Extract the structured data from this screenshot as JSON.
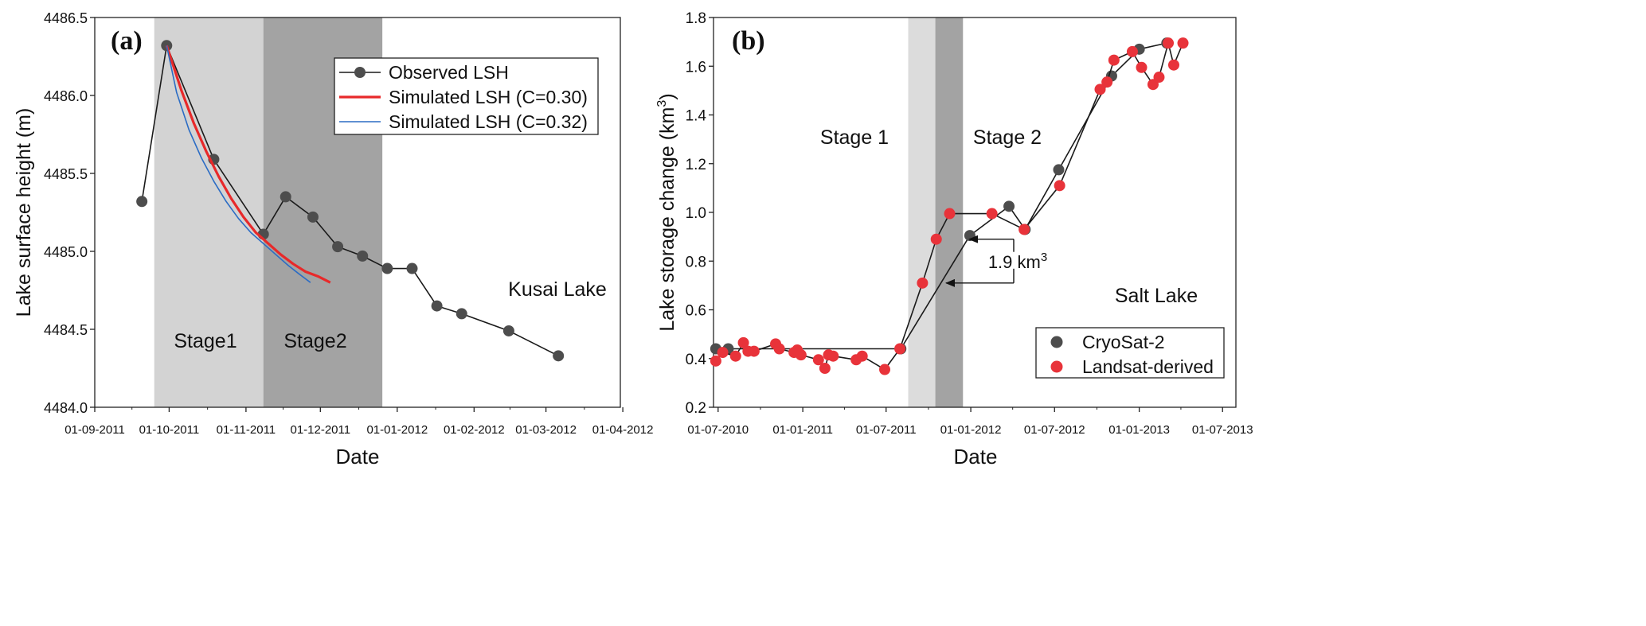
{
  "chart_data": [
    {
      "id": "a",
      "type": "line",
      "panel_label": "(a)",
      "xlabel": "Date",
      "ylabel": "Lake surface height (m)",
      "x_unit": "days since 01-09-2011",
      "xlim": [
        0,
        212
      ],
      "ylim": [
        4484.0,
        4486.5
      ],
      "x_ticks": [
        {
          "x": 0,
          "label": "01-09-2011"
        },
        {
          "x": 30,
          "label": "01-10-2011"
        },
        {
          "x": 61,
          "label": "01-11-2011"
        },
        {
          "x": 91,
          "label": "01-12-2011"
        },
        {
          "x": 122,
          "label": "01-01-2012"
        },
        {
          "x": 153,
          "label": "01-02-2012"
        },
        {
          "x": 182,
          "label": "01-03-2012"
        },
        {
          "x": 213,
          "label": "01-04-2012"
        }
      ],
      "y_ticks": [
        4484.0,
        4484.5,
        4485.0,
        4485.5,
        4486.0,
        4486.5
      ],
      "y_tick_labels": [
        "4484.0",
        "4484.5",
        "4485.0",
        "4485.5",
        "4486.0",
        "4486.5"
      ],
      "bands": [
        {
          "x0": 24,
          "x1": 68,
          "shade": "#d3d3d3",
          "label": "Stage1"
        },
        {
          "x0": 68,
          "x1": 116,
          "shade": "#a3a3a3",
          "label": "Stage2"
        }
      ],
      "series": [
        {
          "name": "Observed LSH",
          "kind": "line-marker",
          "color": "#4d4d4d",
          "x": [
            19,
            29,
            48,
            68,
            77,
            88,
            98,
            108,
            118,
            128,
            138,
            148,
            167,
            187
          ],
          "y": [
            4485.32,
            4486.32,
            4485.59,
            4485.11,
            4485.35,
            4485.22,
            4485.03,
            4484.97,
            4484.89,
            4484.89,
            4484.65,
            4484.6,
            4484.49,
            4484.33
          ]
        },
        {
          "name": "Simulated LSH (C=0.30)",
          "kind": "line",
          "color": "#e8292a",
          "x": [
            29,
            35,
            40,
            45,
            50,
            55,
            60,
            65,
            70,
            75,
            80,
            85,
            90,
            95
          ],
          "y": [
            4486.32,
            4486.03,
            4485.82,
            4485.64,
            4485.48,
            4485.34,
            4485.22,
            4485.12,
            4485.05,
            4484.98,
            4484.92,
            4484.87,
            4484.84,
            4484.8
          ]
        },
        {
          "name": "Simulated LSH (C=0.32)",
          "kind": "line",
          "color": "#2b6cc4",
          "x": [
            29,
            33,
            38,
            43,
            48,
            53,
            58,
            63,
            68,
            73,
            78,
            82,
            87
          ],
          "y": [
            4486.32,
            4486.02,
            4485.78,
            4485.6,
            4485.45,
            4485.32,
            4485.21,
            4485.12,
            4485.05,
            4484.98,
            4484.91,
            4484.86,
            4484.8
          ]
        }
      ],
      "legend": {
        "position": "top-right"
      },
      "annotations": [
        {
          "text": "Kusai Lake"
        }
      ]
    },
    {
      "id": "b",
      "type": "line",
      "panel_label": "(b)",
      "xlabel": "Date",
      "ylabel_main": "Lake storage change (km",
      "ylabel_sup": "3",
      "ylabel_end": ")",
      "x_unit": "days since 01-07-2010",
      "xlim": [
        -10,
        1125
      ],
      "ylim": [
        0.2,
        1.8
      ],
      "x_ticks": [
        {
          "x": 0,
          "label": "01-07-2010"
        },
        {
          "x": 184,
          "label": "01-01-2011"
        },
        {
          "x": 365,
          "label": "01-07-2011"
        },
        {
          "x": 549,
          "label": "01-01-2012"
        },
        {
          "x": 731,
          "label": "01-07-2012"
        },
        {
          "x": 915,
          "label": "01-01-2013"
        },
        {
          "x": 1096,
          "label": "01-07-2013"
        }
      ],
      "y_ticks": [
        0.2,
        0.4,
        0.6,
        0.8,
        1.0,
        1.2,
        1.4,
        1.6,
        1.8
      ],
      "y_tick_labels": [
        "0.2",
        "0.4",
        "0.6",
        "0.8",
        "1.0",
        "1.2",
        "1.4",
        "1.6",
        "1.8"
      ],
      "bands": [
        {
          "x0": 413,
          "x1": 472,
          "shade": "#dcdcdc",
          "label": "Stage 1"
        },
        {
          "x0": 472,
          "x1": 532,
          "shade": "#a3a3a3",
          "label": "Stage 2"
        }
      ],
      "series": [
        {
          "name": "CryoSat-2",
          "kind": "line-marker",
          "color": "#4d4d4d",
          "x": [
            -5,
            22,
            397,
            547,
            632,
            667,
            740,
            855,
            915,
            975
          ],
          "y": [
            0.44,
            0.44,
            0.44,
            0.905,
            1.025,
            0.93,
            1.175,
            1.56,
            1.67,
            1.695
          ]
        },
        {
          "name": "Landsat-derived",
          "kind": "line-marker",
          "color": "#e8333a",
          "x": [
            -5,
            10,
            38,
            55,
            65,
            78,
            125,
            133,
            165,
            172,
            180,
            218,
            232,
            240,
            250,
            300,
            313,
            362,
            395,
            444,
            474,
            503,
            595,
            665,
            742,
            830,
            845,
            860,
            900,
            920,
            945,
            958,
            978,
            990,
            1010
          ],
          "y": [
            0.39,
            0.425,
            0.41,
            0.465,
            0.43,
            0.43,
            0.46,
            0.44,
            0.425,
            0.435,
            0.415,
            0.395,
            0.36,
            0.415,
            0.41,
            0.395,
            0.41,
            0.355,
            0.44,
            0.71,
            0.89,
            0.995,
            0.995,
            0.93,
            1.11,
            1.505,
            1.535,
            1.625,
            1.66,
            1.595,
            1.525,
            1.555,
            1.695,
            1.605,
            1.695
          ]
        }
      ],
      "legend": {
        "position": "bottom-right"
      },
      "annotations": [
        {
          "text": "Salt Lake"
        },
        {
          "main": "1.9 km",
          "sup": "3"
        }
      ]
    }
  ]
}
